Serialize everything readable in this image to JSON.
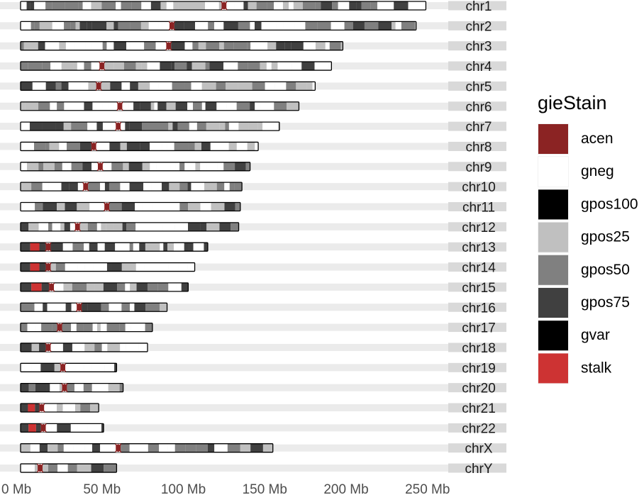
{
  "chart_data": {
    "type": "ideogram",
    "x_axis": {
      "ticks": [
        0,
        50,
        100,
        150,
        200,
        250
      ],
      "tick_labels": [
        "0 Mb",
        "50 Mb",
        "100 Mb",
        "150 Mb",
        "200 Mb",
        "250 Mb"
      ],
      "xlim": [
        0,
        250
      ]
    },
    "legend": {
      "title": "gieStain",
      "placement": "right",
      "entries": [
        {
          "name": "acen",
          "color": "#8b2323"
        },
        {
          "name": "gneg",
          "color": "#ffffff"
        },
        {
          "name": "gpos100",
          "color": "#000000"
        },
        {
          "name": "gpos25",
          "color": "#c0c0c0"
        },
        {
          "name": "gpos50",
          "color": "#808080"
        },
        {
          "name": "gpos75",
          "color": "#404040"
        },
        {
          "name": "gvar",
          "color": "#000000"
        },
        {
          "name": "stalk",
          "color": "#cd3333"
        }
      ]
    },
    "chromosomes": [
      {
        "name": "chr1",
        "length": 249,
        "centromere": 125,
        "acrocentric": false
      },
      {
        "name": "chr2",
        "length": 243,
        "centromere": 93,
        "acrocentric": false
      },
      {
        "name": "chr3",
        "length": 198,
        "centromere": 91,
        "acrocentric": false
      },
      {
        "name": "chr4",
        "length": 191,
        "centromere": 50,
        "acrocentric": false
      },
      {
        "name": "chr5",
        "length": 181,
        "centromere": 48,
        "acrocentric": false
      },
      {
        "name": "chr6",
        "length": 171,
        "centromere": 61,
        "acrocentric": false
      },
      {
        "name": "chr7",
        "length": 159,
        "centromere": 60,
        "acrocentric": false
      },
      {
        "name": "chr8",
        "length": 146,
        "centromere": 45,
        "acrocentric": false
      },
      {
        "name": "chr9",
        "length": 141,
        "centromere": 49,
        "acrocentric": false
      },
      {
        "name": "chr10",
        "length": 136,
        "centromere": 40,
        "acrocentric": false
      },
      {
        "name": "chr11",
        "length": 135,
        "centromere": 53,
        "acrocentric": false
      },
      {
        "name": "chr12",
        "length": 134,
        "centromere": 35,
        "acrocentric": false
      },
      {
        "name": "chr13",
        "length": 115,
        "centromere": 17,
        "acrocentric": true
      },
      {
        "name": "chr14",
        "length": 107,
        "centromere": 17,
        "acrocentric": true
      },
      {
        "name": "chr15",
        "length": 103,
        "centromere": 19,
        "acrocentric": true
      },
      {
        "name": "chr16",
        "length": 90,
        "centromere": 36,
        "acrocentric": false
      },
      {
        "name": "chr17",
        "length": 81,
        "centromere": 24,
        "acrocentric": false
      },
      {
        "name": "chr18",
        "length": 78,
        "centromere": 17,
        "acrocentric": false
      },
      {
        "name": "chr19",
        "length": 59,
        "centromere": 26,
        "acrocentric": false
      },
      {
        "name": "chr20",
        "length": 63,
        "centromere": 27,
        "acrocentric": false
      },
      {
        "name": "chr21",
        "length": 48,
        "centromere": 13,
        "acrocentric": true
      },
      {
        "name": "chr22",
        "length": 51,
        "centromere": 14,
        "acrocentric": true
      },
      {
        "name": "chrX",
        "length": 155,
        "centromere": 60,
        "acrocentric": false
      },
      {
        "name": "chrY",
        "length": 59,
        "centromere": 12,
        "acrocentric": false
      }
    ]
  }
}
